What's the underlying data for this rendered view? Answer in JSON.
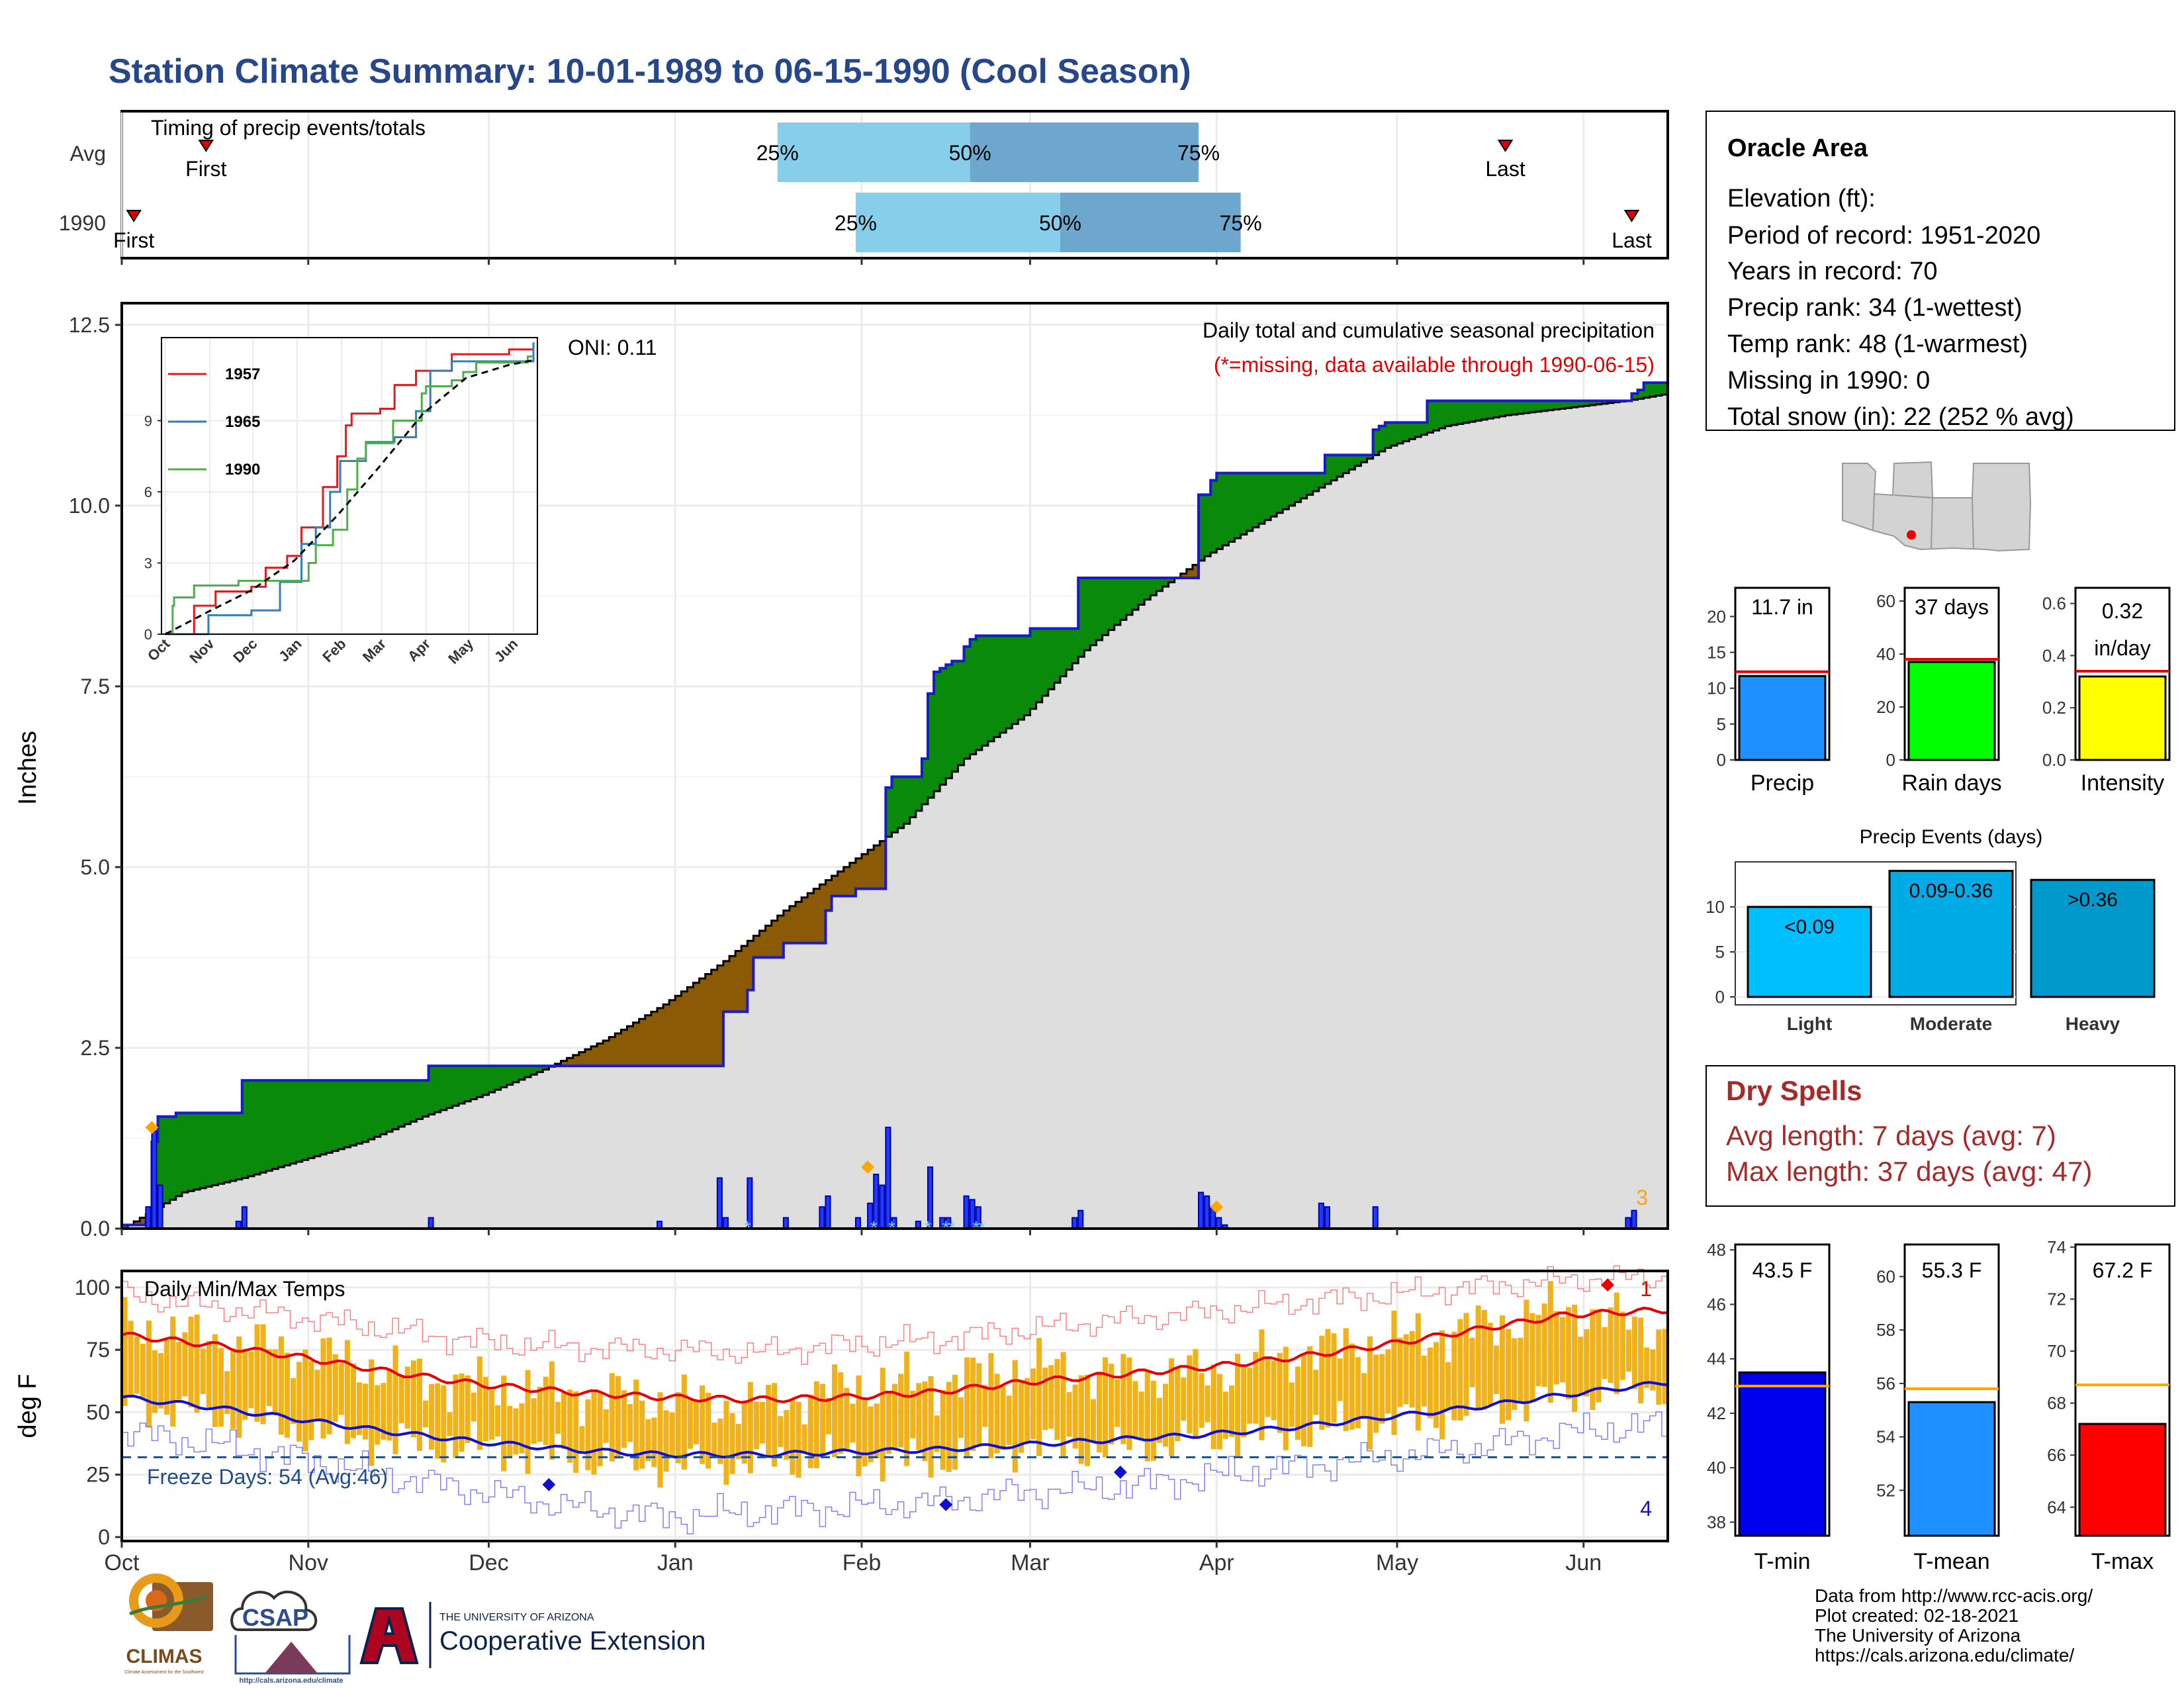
{
  "title": "Station Climate Summary: 10-01-1989 to 06-15-1990 (Cool Season)",
  "colors": {
    "title": "#26478a",
    "normal_fill": "#dedede",
    "above_fill": "#0a8a0a",
    "below_fill": "#8b5a06",
    "obs_line": "#1a1acc",
    "timing_light": "#87ceeb",
    "timing_dark": "#6ea7cd",
    "temp_bar": "#f0b21a",
    "red": "#e60000",
    "blue": "#1010cc",
    "orange": "#ffa500",
    "dry_spells": "#a52a2a",
    "freeze": "#1f4e8c"
  },
  "timing_panel": {
    "label": "Timing of precip events/totals",
    "rows": [
      {
        "name": "Avg",
        "first_label": "First",
        "last_label": "Last",
        "first_day": 14,
        "last_day": 230,
        "p25_day": 109,
        "p50_day": 141,
        "p75_day": 179
      },
      {
        "name": "1990",
        "first_label": "First",
        "last_label": "Last",
        "first_day": 2,
        "last_day": 251,
        "p25_day": 122,
        "p50_day": 156,
        "p75_day": 186
      }
    ],
    "pct_labels": [
      "25%",
      "50%",
      "75%"
    ]
  },
  "precip_panel": {
    "ylabel": "Inches",
    "oni": "ONI: 0.11",
    "subtitle": "Daily total and cumulative seasonal precipitation",
    "note": "(*=missing, data available through 1990-06-15)",
    "corner_count": "3",
    "yticks": [
      "0.0",
      "2.5",
      "5.0",
      "7.5",
      "10.0",
      "12.5"
    ]
  },
  "inset": {
    "yticks": [
      "0",
      "3",
      "6",
      "9"
    ],
    "months": [
      "Oct",
      "Nov",
      "Dec",
      "Jan",
      "Feb",
      "Mar",
      "Apr",
      "May",
      "Jun"
    ],
    "legend": [
      "1957",
      "1965",
      "1990"
    ]
  },
  "temp_panel": {
    "label": "Daily Min/Max Temps",
    "ylabel": "deg F",
    "freeze_text": "Freeze Days: 54 (Avg:46)",
    "count_top": "1",
    "count_bottom": "4",
    "yticks": [
      "0",
      "25",
      "50",
      "75",
      "100"
    ]
  },
  "x_months": [
    "Oct",
    "Nov",
    "Dec",
    "Jan",
    "Feb",
    "Mar",
    "Apr",
    "May",
    "Jun"
  ],
  "info_box": {
    "title": "Oracle Area",
    "lines": [
      "Elevation (ft):",
      "Period of record: 1951-2020",
      "Years in record: 70",
      "Precip rank: 34 (1-wettest)",
      "Temp rank: 48 (1-warmest)",
      "Missing in 1990: 0",
      "Total snow (in): 22 (252 % avg)"
    ]
  },
  "mini_bars": {
    "precip": {
      "label": "Precip",
      "value_label": "11.7 in",
      "value": 11.7,
      "avg": 12.3,
      "yticks": [
        "0",
        "5",
        "10",
        "15",
        "20"
      ]
    },
    "rain_days": {
      "label": "Rain days",
      "value_label": "37 days",
      "value": 37,
      "avg": 38,
      "yticks": [
        "0",
        "20",
        "40",
        "60"
      ]
    },
    "intensity": {
      "label": "Intensity",
      "value_label_1": "0.32",
      "value_label_2": "in/day",
      "value": 0.32,
      "avg": 0.34,
      "yticks": [
        "0.0",
        "0.2",
        "0.4",
        "0.6"
      ]
    }
  },
  "precip_events": {
    "title": "Precip Events (days)",
    "yticks": [
      "0",
      "5",
      "10"
    ],
    "bars": [
      {
        "label": "Light",
        "bar_text": "<0.09",
        "value": 10,
        "color": "#00bfff"
      },
      {
        "label": "Moderate",
        "bar_text": "0.09-0.36",
        "value": 14,
        "color": "#00abe6"
      },
      {
        "label": "Heavy",
        "bar_text": ">0.36",
        "value": 13,
        "color": "#0099cc"
      }
    ]
  },
  "dry_spells": {
    "title": "Dry Spells",
    "avg_line": "Avg length: 7 days (avg: 7)",
    "max_line": "Max length: 37 days (avg: 47)"
  },
  "temp_bars": {
    "tmin": {
      "label": "T-min",
      "value_label": "43.5 F",
      "value": 43.5,
      "avg": 43.0,
      "color": "#0000ee",
      "yticks": [
        "38",
        "40",
        "42",
        "44",
        "46",
        "48"
      ]
    },
    "tmean": {
      "label": "T-mean",
      "value_label": "55.3 F",
      "value": 55.3,
      "avg": 55.8,
      "color": "#1e90ff",
      "yticks": [
        "52",
        "54",
        "56",
        "58",
        "60"
      ]
    },
    "tmax": {
      "label": "T-max",
      "value_label": "67.2 F",
      "value": 67.2,
      "avg": 68.7,
      "color": "#ff0000",
      "yticks": [
        "64",
        "66",
        "68",
        "70",
        "72",
        "74"
      ]
    }
  },
  "footer": {
    "lines": [
      "Data from http://www.rcc-acis.org/",
      "Plot created: 02-18-2021",
      "The University of Arizona",
      "https://cals.arizona.edu/climate/"
    ],
    "logos": {
      "climas": "CLIMAS",
      "climas_sub": "Climate Assessment for the Southwest",
      "csap": "CSAP",
      "csap_url": "http://cals.arizona.edu/climate",
      "ua_small": "THE UNIVERSITY OF ARIZONA",
      "ua_big": "Cooperative Extension"
    }
  },
  "chart_data": [
    {
      "type": "area",
      "title": "Daily total and cumulative seasonal precipitation",
      "ylabel": "Inches",
      "ylim": [
        0,
        12.8
      ],
      "x_unit": "day of season (0 = Oct 1)",
      "series": [
        {
          "name": "cumulative_normal",
          "x": [
            0,
            10,
            20,
            30,
            40,
            50,
            60,
            70,
            80,
            90,
            100,
            110,
            120,
            130,
            140,
            150,
            160,
            170,
            180,
            190,
            200,
            210,
            220,
            230,
            240,
            250,
            257
          ],
          "values": [
            0,
            0.5,
            0.7,
            0.95,
            1.2,
            1.55,
            1.85,
            2.2,
            2.6,
            3.1,
            3.7,
            4.4,
            5.0,
            5.6,
            6.5,
            7.1,
            8.0,
            8.7,
            9.3,
            9.8,
            10.3,
            10.8,
            11.1,
            11.25,
            11.35,
            11.45,
            11.55
          ]
        },
        {
          "name": "cumulative_1990",
          "steps": [
            [
              0,
              0.05
            ],
            [
              4,
              0.1
            ],
            [
              5,
              1.2
            ],
            [
              6,
              1.55
            ],
            [
              9,
              1.6
            ],
            [
              19,
              1.6
            ],
            [
              20,
              2.05
            ],
            [
              50,
              2.05
            ],
            [
              51,
              2.25
            ],
            [
              99,
              2.25
            ],
            [
              100,
              3.0
            ],
            [
              104,
              3.3
            ],
            [
              105,
              3.75
            ],
            [
              110,
              3.95
            ],
            [
              116,
              3.95
            ],
            [
              117,
              4.4
            ],
            [
              118,
              4.6
            ],
            [
              121,
              4.6
            ],
            [
              122,
              4.7
            ],
            [
              126,
              4.7
            ],
            [
              127,
              6.1
            ],
            [
              128,
              6.25
            ],
            [
              133,
              6.5
            ],
            [
              134,
              7.4
            ],
            [
              135,
              7.7
            ],
            [
              136,
              7.75
            ],
            [
              137,
              7.8
            ],
            [
              138,
              7.85
            ],
            [
              140,
              8.05
            ],
            [
              141,
              8.15
            ],
            [
              142,
              8.2
            ],
            [
              150,
              8.2
            ],
            [
              151,
              8.3
            ],
            [
              158,
              8.3
            ],
            [
              159,
              9.0
            ],
            [
              178,
              9.0
            ],
            [
              179,
              10.15
            ],
            [
              181,
              10.35
            ],
            [
              182,
              10.45
            ],
            [
              199,
              10.45
            ],
            [
              200,
              10.7
            ],
            [
              207,
              10.7
            ],
            [
              208,
              11.05
            ],
            [
              209,
              11.1
            ],
            [
              210,
              11.15
            ],
            [
              216,
              11.15
            ],
            [
              217,
              11.45
            ],
            [
              250,
              11.45
            ],
            [
              251,
              11.55
            ],
            [
              252,
              11.6
            ],
            [
              253,
              11.7
            ],
            [
              257,
              11.7
            ]
          ]
        }
      ],
      "daily_bars": [
        [
          4,
          0.3
        ],
        [
          5,
          1.35
        ],
        [
          6,
          0.6
        ],
        [
          19,
          0.1
        ],
        [
          20,
          0.3
        ],
        [
          51,
          0.15
        ],
        [
          89,
          0.1
        ],
        [
          99,
          0.7
        ],
        [
          100,
          0.15
        ],
        [
          104,
          0.7
        ],
        [
          110,
          0.15
        ],
        [
          116,
          0.3
        ],
        [
          117,
          0.45
        ],
        [
          122,
          0.15
        ],
        [
          124,
          0.35
        ],
        [
          125,
          0.75
        ],
        [
          126,
          0.6
        ],
        [
          127,
          1.4
        ],
        [
          128,
          0.15
        ],
        [
          132,
          0.1
        ],
        [
          134,
          0.85
        ],
        [
          136,
          0.15
        ],
        [
          137,
          0.15
        ],
        [
          140,
          0.45
        ],
        [
          141,
          0.4
        ],
        [
          142,
          0.3
        ],
        [
          158,
          0.15
        ],
        [
          159,
          0.25
        ],
        [
          179,
          0.5
        ],
        [
          180,
          0.45
        ],
        [
          181,
          0.3
        ],
        [
          182,
          0.15
        ],
        [
          183,
          0.05
        ],
        [
          199,
          0.35
        ],
        [
          200,
          0.3
        ],
        [
          208,
          0.3
        ],
        [
          250,
          0.15
        ],
        [
          251,
          0.25
        ]
      ],
      "markers_orange": [
        [
          5,
          1.4
        ],
        [
          124,
          0.85
        ],
        [
          182,
          0.3
        ]
      ]
    },
    {
      "type": "line",
      "title": "inset cumulative precipitation",
      "ylim": [
        0,
        12.5
      ],
      "series": [
        {
          "name": "1957",
          "steps": [
            [
              0,
              0
            ],
            [
              20,
              1.2
            ],
            [
              35,
              1.8
            ],
            [
              60,
              2.0
            ],
            [
              70,
              2.8
            ],
            [
              85,
              3.3
            ],
            [
              95,
              4.5
            ],
            [
              110,
              6.2
            ],
            [
              120,
              7.5
            ],
            [
              126,
              8.8
            ],
            [
              130,
              9.3
            ],
            [
              150,
              9.5
            ],
            [
              160,
              10.5
            ],
            [
              175,
              11.1
            ],
            [
              200,
              11.8
            ],
            [
              240,
              12.0
            ],
            [
              257,
              12.2
            ]
          ]
        },
        {
          "name": "1965",
          "steps": [
            [
              0,
              0
            ],
            [
              30,
              0.8
            ],
            [
              60,
              1.0
            ],
            [
              80,
              2.2
            ],
            [
              95,
              3.8
            ],
            [
              105,
              4.5
            ],
            [
              115,
              6.0
            ],
            [
              122,
              7.3
            ],
            [
              140,
              8.1
            ],
            [
              160,
              8.3
            ],
            [
              175,
              9.4
            ],
            [
              185,
              11.1
            ],
            [
              200,
              11.5
            ],
            [
              257,
              12.3
            ]
          ]
        },
        {
          "name": "1990",
          "steps": [
            [
              0,
              0.05
            ],
            [
              5,
              1.2
            ],
            [
              6,
              1.55
            ],
            [
              20,
              2.05
            ],
            [
              51,
              2.25
            ],
            [
              100,
              3.0
            ],
            [
              105,
              3.75
            ],
            [
              117,
              4.4
            ],
            [
              127,
              6.1
            ],
            [
              134,
              7.4
            ],
            [
              140,
              8.05
            ],
            [
              159,
              9.0
            ],
            [
              179,
              10.15
            ],
            [
              182,
              10.45
            ],
            [
              200,
              10.7
            ],
            [
              208,
              11.05
            ],
            [
              217,
              11.45
            ],
            [
              253,
              11.7
            ],
            [
              257,
              11.7
            ]
          ]
        },
        {
          "name": "normal",
          "x": [
            0,
            30,
            60,
            90,
            120,
            150,
            180,
            210,
            240,
            257
          ],
          "values": [
            0,
            0.95,
            1.85,
            3.1,
            5.0,
            7.1,
            9.3,
            10.8,
            11.35,
            11.55
          ]
        }
      ]
    },
    {
      "type": "line",
      "title": "Daily Min/Max Temps",
      "ylabel": "deg F",
      "ylim": [
        0,
        105
      ],
      "x": [
        0,
        15,
        30,
        45,
        60,
        75,
        90,
        105,
        120,
        135,
        150,
        165,
        180,
        195,
        210,
        225,
        240,
        257
      ],
      "series": [
        {
          "name": "normal_max",
          "values": [
            81,
            77,
            72,
            66,
            61,
            58,
            56,
            55,
            56,
            58,
            62,
            65,
            68,
            72,
            77,
            83,
            89,
            91
          ]
        },
        {
          "name": "normal_min",
          "values": [
            56,
            52,
            47,
            42,
            38,
            35,
            33,
            33,
            34,
            35,
            37,
            39,
            41,
            44,
            48,
            52,
            57,
            62
          ]
        },
        {
          "name": "record_max",
          "values": [
            97,
            92,
            88,
            83,
            78,
            76,
            75,
            74,
            77,
            79,
            83,
            87,
            90,
            94,
            97,
            100,
            103,
            104
          ]
        },
        {
          "name": "record_min",
          "values": [
            42,
            37,
            31,
            24,
            18,
            12,
            8,
            10,
            12,
            14,
            18,
            20,
            24,
            28,
            32,
            36,
            42,
            45
          ]
        },
        {
          "name": "daily_max",
          "values": [
            84,
            79,
            74,
            66,
            60,
            58,
            55,
            53,
            60,
            62,
            68,
            65,
            66,
            74,
            78,
            84,
            92,
            82
          ]
        },
        {
          "name": "daily_min",
          "values": [
            54,
            49,
            42,
            38,
            36,
            32,
            29,
            30,
            32,
            31,
            37,
            35,
            40,
            42,
            46,
            50,
            57,
            60
          ]
        }
      ],
      "freeze_line": 32
    }
  ]
}
